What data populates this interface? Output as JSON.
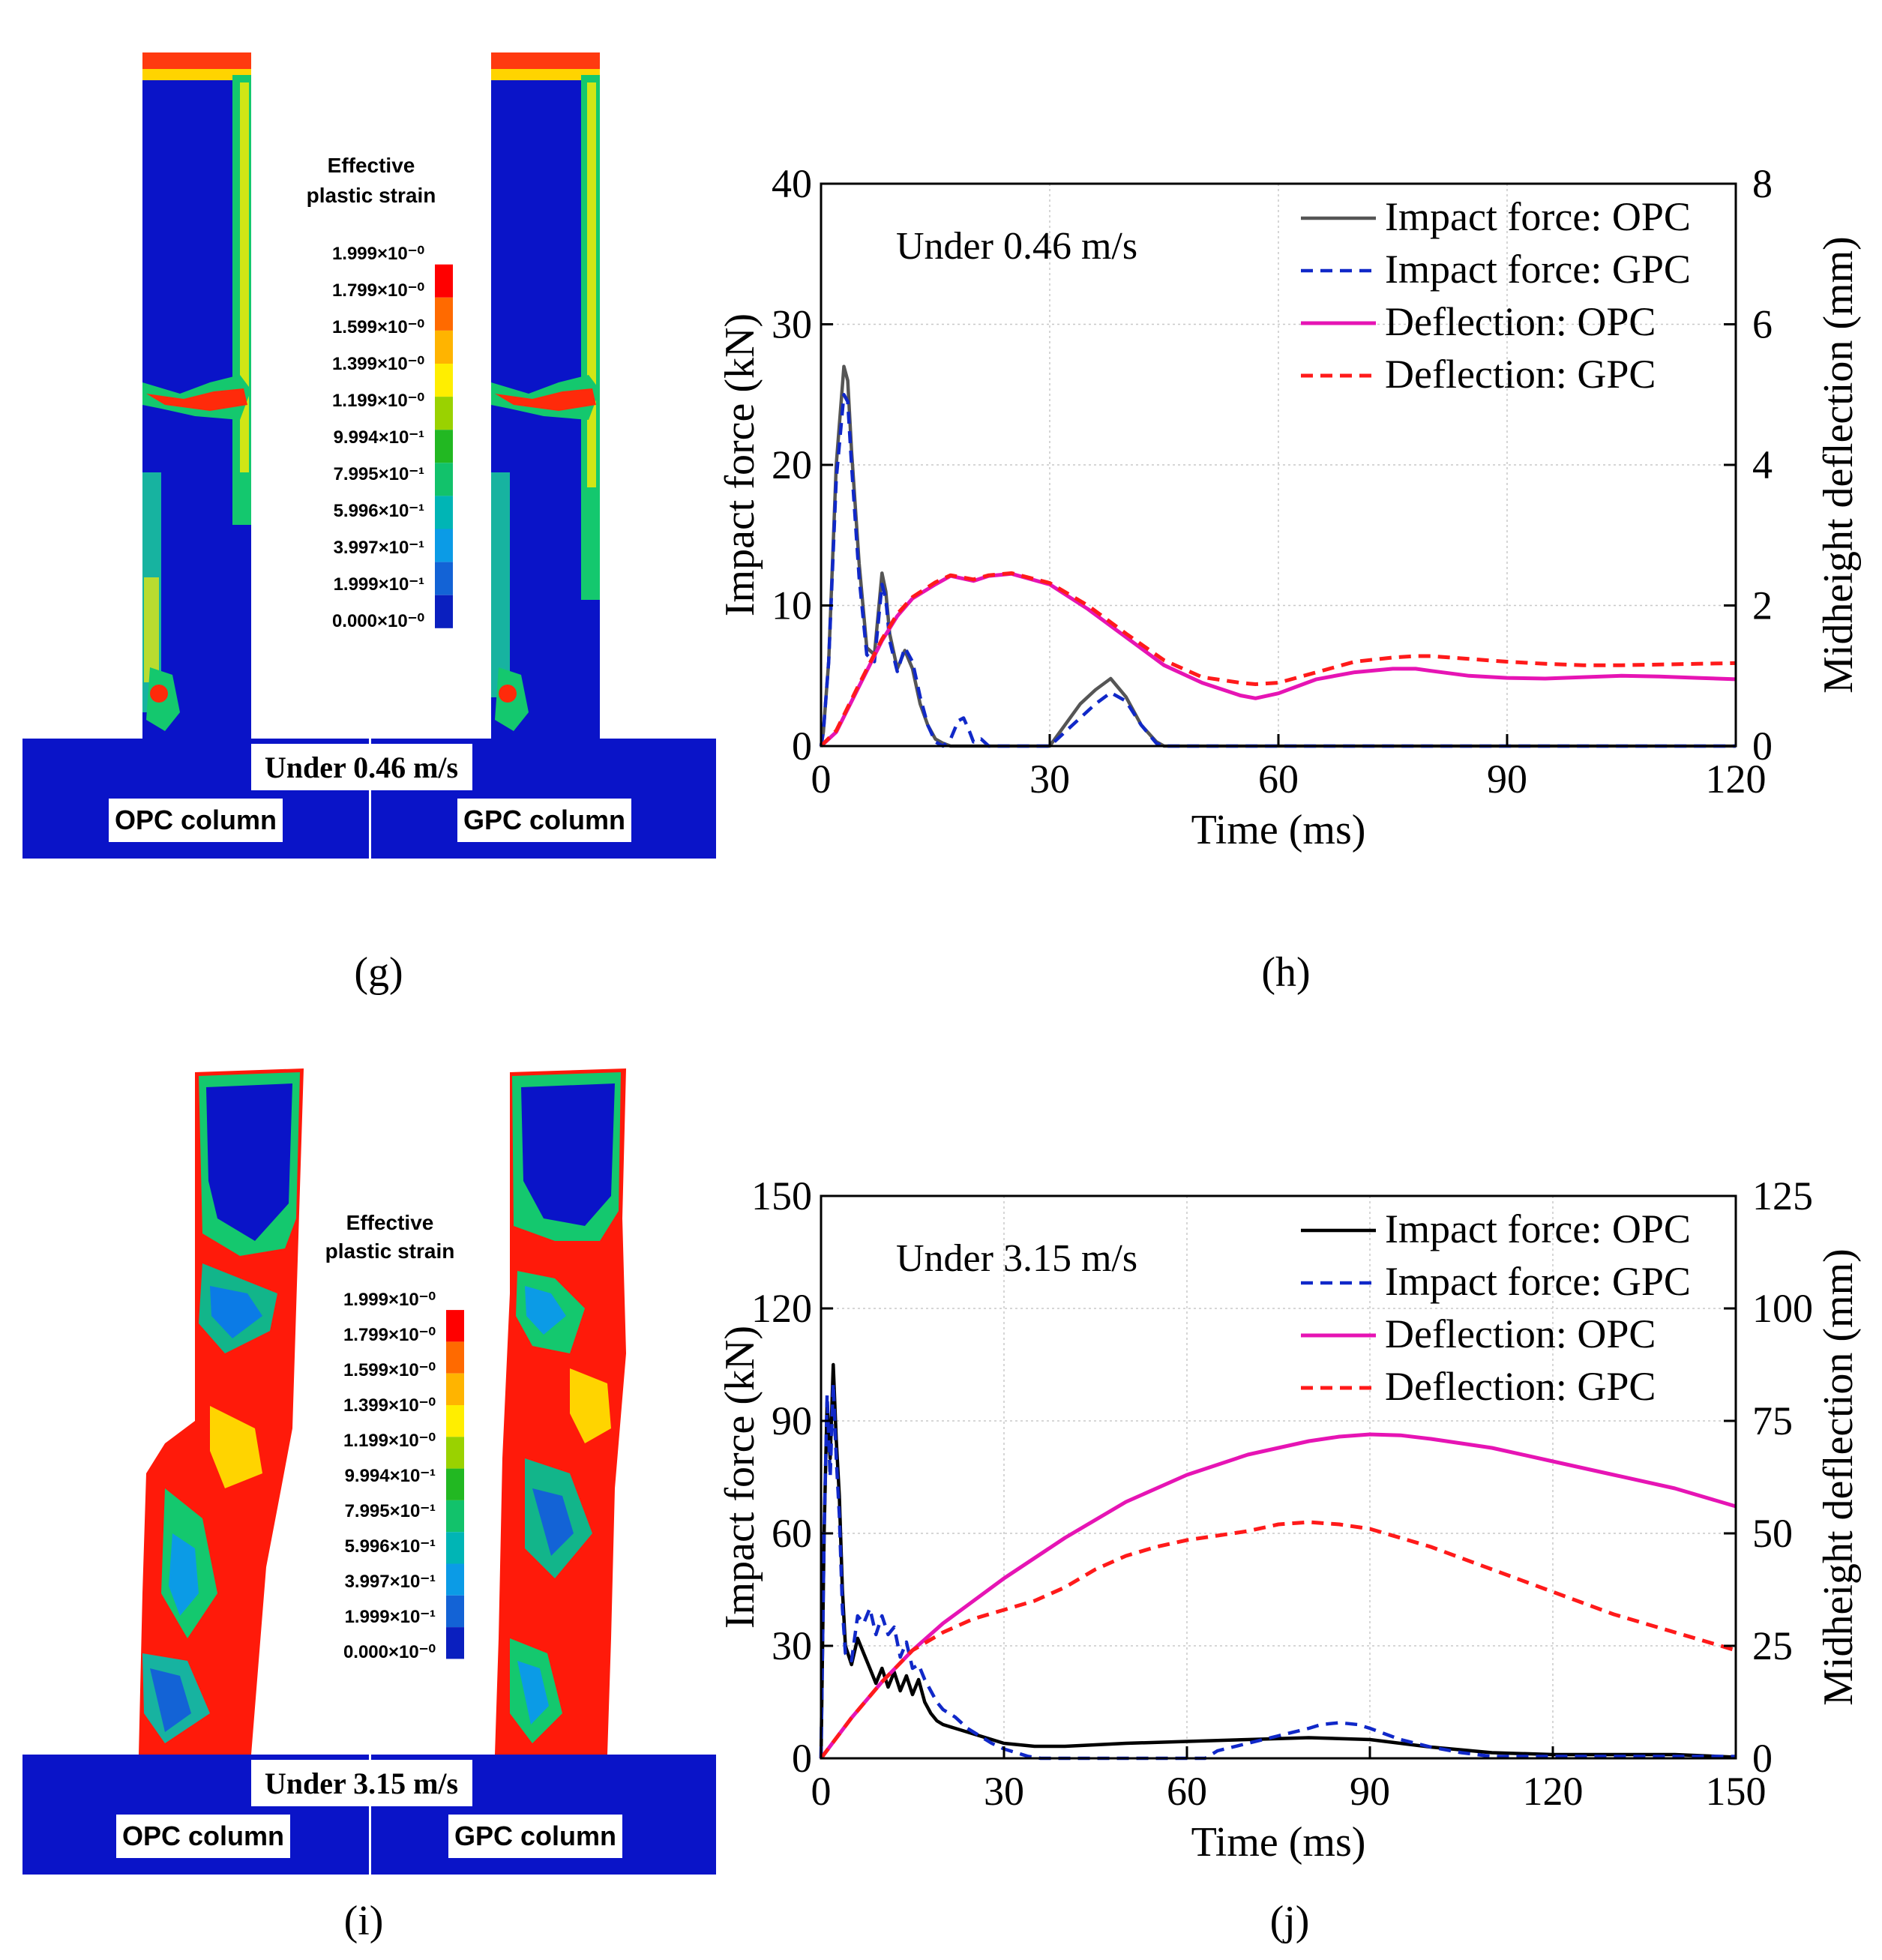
{
  "panels": {
    "g": {
      "caption": "(g)",
      "legend_title_line1": "Effective",
      "legend_title_line2": "plastic strain",
      "legend_labels": [
        "1.999×10⁻⁰",
        "1.799×10⁻⁰",
        "1.599×10⁻⁰",
        "1.399×10⁻⁰",
        "1.199×10⁻⁰",
        "9.994×10⁻¹",
        "7.995×10⁻¹",
        "5.996×10⁻¹",
        "3.997×10⁻¹",
        "1.999×10⁻¹",
        "0.000×10⁻⁰"
      ],
      "velocity_label": "Under 0.46 m/s",
      "left_column_label": "OPC column",
      "right_column_label": "GPC column"
    },
    "i": {
      "caption": "(i)",
      "legend_title_line1": "Effective",
      "legend_title_line2": "plastic strain",
      "legend_labels": [
        "1.999×10⁻⁰",
        "1.799×10⁻⁰",
        "1.599×10⁻⁰",
        "1.399×10⁻⁰",
        "1.199×10⁻⁰",
        "9.994×10⁻¹",
        "7.995×10⁻¹",
        "5.996×10⁻¹",
        "3.997×10⁻¹",
        "1.999×10⁻¹",
        "0.000×10⁻⁰"
      ],
      "velocity_label": "Under 3.15 m/s",
      "left_column_label": "OPC column",
      "right_column_label": "GPC column"
    },
    "h_caption": "(h)",
    "j_caption": "(j)"
  },
  "colors": {
    "legend_scale": [
      "#ff0000",
      "#ff6a00",
      "#ffb400",
      "#ffee00",
      "#9ad200",
      "#22b822",
      "#12c26b",
      "#00b5b5",
      "#0b9be6",
      "#1363d6",
      "#0a1fbf"
    ],
    "deep_blue": "#0a14c8",
    "force_opc": "#555555",
    "force_gpc": "#1028c8",
    "defl_opc": "#e614b4",
    "defl_gpc": "#ff1a1a"
  },
  "chart_data": [
    {
      "id": "h",
      "type": "line",
      "annotation": "Under 0.46 m/s",
      "xlabel": "Time (ms)",
      "ylabel": "Impact force (kN)",
      "y2label": "Midheight deflection (mm)",
      "xlim": [
        0,
        120
      ],
      "ylim": [
        0,
        40
      ],
      "y2lim": [
        0,
        8
      ],
      "xticks": [
        0,
        30,
        60,
        90,
        120
      ],
      "yticks": [
        0,
        10,
        20,
        30,
        40
      ],
      "y2ticks": [
        0,
        2,
        4,
        6,
        8
      ],
      "grid": true,
      "legend_position": "top-right",
      "series": [
        {
          "name": "Impact force: OPC",
          "axis": "left",
          "style": "solid",
          "color": "#555555",
          "x": [
            0,
            0.3,
            1,
            2,
            3,
            3.5,
            4,
            5,
            6,
            7,
            8,
            8.5,
            9,
            10,
            11,
            12,
            13,
            14,
            15,
            16,
            17,
            18,
            19,
            20,
            25,
            30,
            32,
            34,
            36,
            38,
            40,
            42,
            44,
            45,
            50,
            60,
            90,
            120
          ],
          "y": [
            0,
            1,
            6,
            20,
            27,
            26,
            21,
            13,
            7,
            6.5,
            12.3,
            11,
            8,
            5.5,
            6.8,
            5.5,
            3,
            1.5,
            0.5,
            0.2,
            0,
            0,
            0,
            0,
            0,
            0,
            1.5,
            3,
            4,
            4.8,
            3.5,
            1.5,
            0.3,
            0,
            0,
            0,
            0,
            0
          ]
        },
        {
          "name": "Impact force: GPC",
          "axis": "left",
          "style": "dashed",
          "color": "#1028c8",
          "x": [
            0,
            0.3,
            1,
            2,
            3,
            3.5,
            4,
            5,
            6,
            7,
            8,
            8.5,
            9,
            10,
            11,
            12,
            13,
            14,
            15,
            16,
            17,
            18,
            18.7,
            19.5,
            20,
            21,
            22,
            25,
            30,
            32,
            34,
            36,
            38,
            40,
            42,
            44,
            45,
            50,
            60,
            90,
            120
          ],
          "y": [
            0,
            1,
            6,
            19,
            25,
            24.5,
            20,
            12,
            6.5,
            6,
            11.5,
            10.5,
            7.5,
            5.3,
            7,
            6,
            3.5,
            1.5,
            0.3,
            0,
            0.5,
            1.8,
            2,
            1,
            0.3,
            0.5,
            0,
            0,
            0,
            1,
            2,
            3,
            3.8,
            3.2,
            1.5,
            0.2,
            0,
            0,
            0,
            0,
            0
          ]
        },
        {
          "name": "Deflection: OPC",
          "axis": "right",
          "style": "solid",
          "color": "#e614b4",
          "x": [
            0,
            2,
            5,
            8,
            10,
            12,
            15,
            17,
            20,
            22,
            25,
            30,
            35,
            40,
            45,
            50,
            55,
            57,
            60,
            65,
            70,
            75,
            78,
            80,
            85,
            90,
            95,
            100,
            105,
            110,
            115,
            120
          ],
          "y": [
            0,
            0.2,
            0.85,
            1.5,
            1.85,
            2.1,
            2.3,
            2.42,
            2.35,
            2.42,
            2.45,
            2.3,
            1.95,
            1.55,
            1.15,
            0.9,
            0.72,
            0.68,
            0.75,
            0.95,
            1.05,
            1.1,
            1.1,
            1.07,
            1.0,
            0.97,
            0.96,
            0.98,
            1.0,
            0.99,
            0.97,
            0.95
          ]
        },
        {
          "name": "Deflection: GPC",
          "axis": "right",
          "style": "dashed",
          "color": "#ff1a1a",
          "x": [
            0,
            2,
            5,
            8,
            10,
            12,
            15,
            17,
            20,
            22,
            25,
            30,
            35,
            40,
            45,
            50,
            55,
            57,
            60,
            65,
            70,
            75,
            78,
            80,
            85,
            90,
            95,
            100,
            105,
            110,
            115,
            120
          ],
          "y": [
            0,
            0.22,
            0.88,
            1.52,
            1.88,
            2.12,
            2.33,
            2.43,
            2.37,
            2.43,
            2.46,
            2.32,
            2.0,
            1.6,
            1.22,
            0.98,
            0.9,
            0.88,
            0.9,
            1.05,
            1.2,
            1.26,
            1.28,
            1.28,
            1.24,
            1.2,
            1.17,
            1.15,
            1.15,
            1.16,
            1.17,
            1.18
          ]
        }
      ]
    },
    {
      "id": "j",
      "type": "line",
      "annotation": "Under 3.15 m/s",
      "xlabel": "Time (ms)",
      "ylabel": "Impact force (kN)",
      "y2label": "Midheight deflection (mm)",
      "xlim": [
        0,
        150
      ],
      "ylim": [
        0,
        150
      ],
      "y2lim": [
        0,
        125
      ],
      "xticks": [
        0,
        30,
        60,
        90,
        120,
        150
      ],
      "yticks": [
        0,
        30,
        60,
        90,
        120,
        150
      ],
      "y2ticks": [
        0,
        25,
        50,
        75,
        100,
        125
      ],
      "grid": true,
      "legend_position": "top-right",
      "series": [
        {
          "name": "Impact force: OPC",
          "axis": "left",
          "style": "solid",
          "color": "#000000",
          "x": [
            0,
            0.5,
            1,
            1.5,
            2,
            2.5,
            3,
            3.5,
            4,
            5,
            6,
            7,
            8,
            9,
            10,
            11,
            12,
            13,
            14,
            15,
            16,
            17,
            18,
            19,
            20,
            22,
            24,
            26,
            28,
            30,
            35,
            40,
            50,
            60,
            70,
            80,
            90,
            100,
            110,
            120,
            130,
            140,
            150
          ],
          "y": [
            0,
            60,
            95,
            80,
            105,
            85,
            70,
            45,
            30,
            25,
            32,
            28,
            24,
            20,
            24,
            19,
            23,
            18,
            22,
            17,
            21,
            15,
            12,
            10,
            9,
            8,
            7,
            6,
            5,
            4,
            3.2,
            3.2,
            4,
            4.5,
            5,
            5.5,
            5,
            3,
            1.5,
            1,
            1,
            1,
            0.3
          ]
        },
        {
          "name": "Impact force: GPC",
          "axis": "left",
          "style": "dashed",
          "color": "#1028c8",
          "x": [
            0,
            0.5,
            1,
            1.5,
            2,
            2.5,
            3,
            3.5,
            4,
            5,
            6,
            7,
            8,
            9,
            10,
            11,
            12,
            13,
            14,
            15,
            16,
            17,
            18,
            19,
            20,
            22,
            24,
            26,
            28,
            30,
            32,
            34,
            36,
            40,
            50,
            60,
            63,
            65,
            70,
            75,
            80,
            82,
            85,
            88,
            90,
            95,
            100,
            105,
            110,
            120,
            130,
            140,
            150
          ],
          "y": [
            0,
            60,
            97,
            75,
            100,
            80,
            65,
            40,
            28,
            26,
            38,
            36,
            40,
            33,
            38,
            33,
            35,
            27,
            31,
            24,
            25,
            21,
            18,
            15,
            13,
            11,
            8,
            6,
            4,
            2.5,
            1.5,
            0.5,
            0,
            0,
            0,
            0,
            0,
            2,
            4,
            6,
            8,
            9,
            9.5,
            9,
            8,
            5,
            3,
            1.5,
            0.5,
            0.5,
            0.5,
            0.5,
            0.5
          ]
        },
        {
          "name": "Deflection: OPC",
          "axis": "right",
          "style": "solid",
          "color": "#e614b4",
          "x": [
            0,
            5,
            10,
            15,
            20,
            30,
            40,
            50,
            60,
            70,
            80,
            85,
            90,
            95,
            100,
            110,
            120,
            130,
            140,
            150
          ],
          "y": [
            0,
            9,
            17,
            24,
            30,
            40,
            49,
            57,
            63,
            67.5,
            70.5,
            71.5,
            72,
            71.8,
            71,
            69,
            66,
            63,
            60,
            56
          ]
        },
        {
          "name": "Deflection: GPC",
          "axis": "right",
          "style": "dashed",
          "color": "#ff1a1a",
          "x": [
            0,
            5,
            10,
            15,
            20,
            25,
            30,
            35,
            40,
            45,
            50,
            55,
            60,
            65,
            70,
            75,
            80,
            85,
            90,
            95,
            100,
            110,
            120,
            130,
            140,
            150
          ],
          "y": [
            0,
            9,
            17,
            24,
            28,
            31,
            33,
            35,
            38,
            42,
            45,
            47,
            48.5,
            49.5,
            50.5,
            52,
            52.5,
            52,
            51,
            49,
            47,
            42,
            37,
            32,
            28,
            24
          ]
        }
      ]
    }
  ]
}
